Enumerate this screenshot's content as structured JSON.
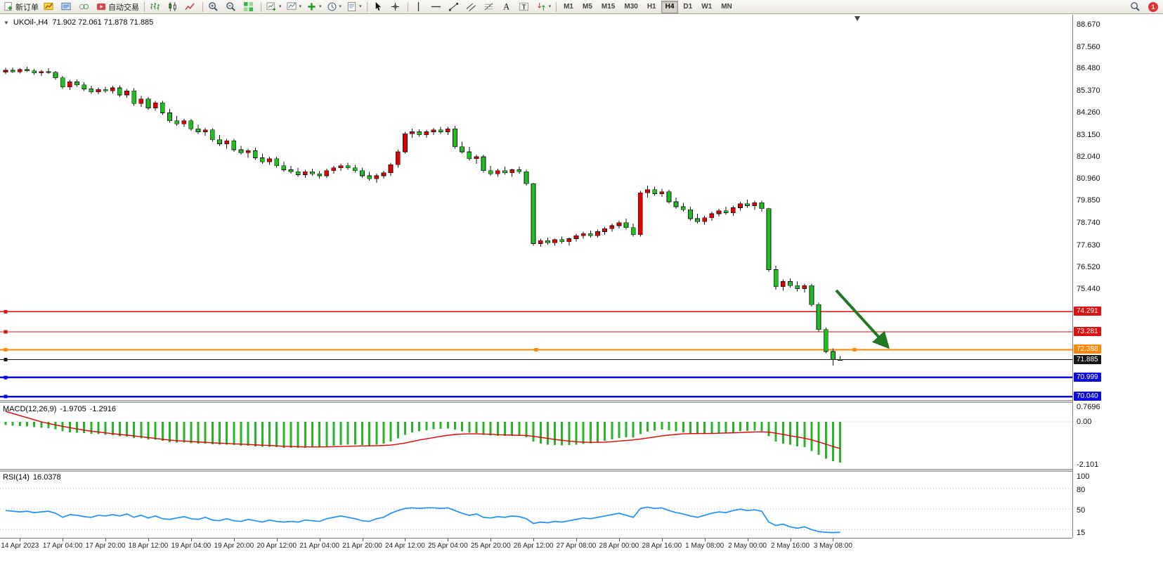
{
  "toolbar": {
    "notification_count": "1",
    "items": [
      {
        "name": "new-order-icon",
        "label": "新订单"
      },
      {
        "name": "charts-icon"
      },
      {
        "name": "market-watch-icon"
      },
      {
        "name": "data-window-icon"
      },
      {
        "name": "auto-trading-icon",
        "label": "自动交易"
      },
      {
        "sep": true
      },
      {
        "name": "bar-chart-icon"
      },
      {
        "name": "candlestick-chart-icon"
      },
      {
        "name": "line-chart-icon"
      },
      {
        "sep": true
      },
      {
        "name": "zoom-in-icon"
      },
      {
        "name": "zoom-out-icon"
      },
      {
        "name": "tile-windows-icon"
      },
      {
        "sep": true
      },
      {
        "name": "new-chart-icon",
        "dropdown": true
      },
      {
        "name": "profiles-icon",
        "dropdown": true
      },
      {
        "name": "indicators-icon",
        "dropdown": true
      },
      {
        "name": "periods-icon",
        "dropdown": true
      },
      {
        "name": "templates-icon",
        "dropdown": true
      },
      {
        "sep": true
      },
      {
        "name": "cursor-icon"
      },
      {
        "name": "crosshair-icon"
      },
      {
        "sep": true
      },
      {
        "name": "vertical-line-icon"
      },
      {
        "name": "horizontal-line-icon"
      },
      {
        "name": "trendline-icon"
      },
      {
        "name": "channel-icon"
      },
      {
        "name": "fibonacci-icon"
      },
      {
        "name": "text-icon"
      },
      {
        "name": "label-icon"
      },
      {
        "name": "arrows-icon",
        "dropdown": true
      },
      {
        "sep": true
      }
    ],
    "timeframes": [
      "M1",
      "M5",
      "M15",
      "M30",
      "H1",
      "H4",
      "D1",
      "W1",
      "MN"
    ],
    "active_timeframe": "H4"
  },
  "quote": {
    "symbol_period": "UKOil-,H4",
    "ohlc": "71.902 72.061 71.878 71.885"
  },
  "indicators": {
    "macd": {
      "name": "MACD(12,26,9)",
      "value_main": "-1.9705",
      "value_signal": "-1.2916",
      "scale_top": "0.7696",
      "scale_zero": "0.00",
      "scale_bottom": "-2.101"
    },
    "rsi": {
      "name": "RSI(14)",
      "value": "16.0378",
      "scale_labels": [
        "100",
        "80",
        "50",
        "15"
      ],
      "levels": [
        80,
        50,
        20
      ]
    }
  },
  "price_scale": {
    "labels": [
      "88.670",
      "87.560",
      "86.480",
      "85.370",
      "84.260",
      "83.150",
      "82.040",
      "80.960",
      "79.850",
      "78.740",
      "77.630",
      "76.520",
      "75.440"
    ]
  },
  "time_axis": {
    "labels": [
      "14 Apr 2023",
      "17 Apr 04:00",
      "17 Apr 20:00",
      "18 Apr 12:00",
      "19 Apr 04:00",
      "19 Apr 20:00",
      "20 Apr 12:00",
      "21 Apr 04:00",
      "21 Apr 20:00",
      "24 Apr 12:00",
      "25 Apr 04:00",
      "25 Apr 20:00",
      "26 Apr 12:00",
      "27 Apr 08:00",
      "28 Apr 00:00",
      "28 Apr 16:00",
      "1 May 08:00",
      "2 May 00:00",
      "2 May 16:00",
      "3 May 08:00"
    ]
  },
  "chart_data": {
    "type": "candlestick",
    "symbol": "UKOil-",
    "timeframe": "H4",
    "current_bar": {
      "open": 71.902,
      "high": 72.061,
      "low": 71.878,
      "close": 71.885
    },
    "up_color": "#e00000",
    "down_color": "#1fbf1f",
    "candles": [
      [
        86.28,
        86.5,
        86.18,
        86.38
      ],
      [
        86.38,
        86.52,
        86.25,
        86.3
      ],
      [
        86.3,
        86.48,
        86.22,
        86.42
      ],
      [
        86.42,
        86.55,
        86.3,
        86.35
      ],
      [
        86.35,
        86.45,
        86.15,
        86.25
      ],
      [
        86.25,
        86.4,
        86.1,
        86.32
      ],
      [
        86.32,
        86.48,
        86.2,
        86.28
      ],
      [
        86.28,
        86.35,
        85.9,
        86.0
      ],
      [
        86.0,
        86.1,
        85.45,
        85.55
      ],
      [
        85.55,
        85.9,
        85.4,
        85.8
      ],
      [
        85.8,
        85.92,
        85.55,
        85.65
      ],
      [
        85.65,
        85.78,
        85.35,
        85.45
      ],
      [
        85.45,
        85.6,
        85.2,
        85.3
      ],
      [
        85.3,
        85.52,
        85.18,
        85.42
      ],
      [
        85.42,
        85.55,
        85.25,
        85.35
      ],
      [
        85.35,
        85.6,
        85.22,
        85.5
      ],
      [
        85.5,
        85.62,
        85.05,
        85.15
      ],
      [
        85.15,
        85.45,
        85.0,
        85.35
      ],
      [
        85.35,
        85.48,
        84.6,
        84.72
      ],
      [
        84.72,
        85.1,
        84.55,
        84.95
      ],
      [
        84.95,
        85.05,
        84.4,
        84.5
      ],
      [
        84.5,
        84.85,
        84.35,
        84.75
      ],
      [
        84.75,
        84.85,
        84.15,
        84.25
      ],
      [
        84.25,
        84.45,
        83.75,
        83.85
      ],
      [
        83.85,
        84.1,
        83.6,
        83.7
      ],
      [
        83.7,
        83.95,
        83.55,
        83.85
      ],
      [
        83.85,
        83.95,
        83.35,
        83.45
      ],
      [
        83.45,
        83.65,
        83.2,
        83.3
      ],
      [
        83.3,
        83.5,
        83.1,
        83.4
      ],
      [
        83.4,
        83.48,
        82.8,
        82.9
      ],
      [
        82.9,
        83.15,
        82.6,
        82.7
      ],
      [
        82.7,
        82.95,
        82.45,
        82.85
      ],
      [
        82.85,
        82.95,
        82.3,
        82.4
      ],
      [
        82.4,
        82.6,
        82.15,
        82.25
      ],
      [
        82.25,
        82.45,
        82.0,
        82.35
      ],
      [
        82.35,
        82.5,
        81.9,
        82.0
      ],
      [
        82.0,
        82.2,
        81.7,
        81.8
      ],
      [
        81.8,
        82.05,
        81.65,
        81.95
      ],
      [
        81.95,
        82.05,
        81.5,
        81.6
      ],
      [
        81.6,
        81.8,
        81.3,
        81.4
      ],
      [
        81.4,
        81.6,
        81.2,
        81.3
      ],
      [
        81.3,
        81.5,
        81.05,
        81.15
      ],
      [
        81.15,
        81.4,
        81.0,
        81.3
      ],
      [
        81.3,
        81.45,
        81.1,
        81.2
      ],
      [
        81.2,
        81.35,
        80.95,
        81.1
      ],
      [
        81.1,
        81.45,
        81.0,
        81.35
      ],
      [
        81.35,
        81.6,
        81.2,
        81.5
      ],
      [
        81.5,
        81.7,
        81.35,
        81.6
      ],
      [
        81.6,
        81.75,
        81.4,
        81.5
      ],
      [
        81.5,
        81.65,
        81.25,
        81.35
      ],
      [
        81.35,
        81.5,
        81.0,
        81.1
      ],
      [
        81.1,
        81.3,
        80.85,
        80.95
      ],
      [
        80.95,
        81.2,
        80.75,
        81.1
      ],
      [
        81.1,
        81.35,
        80.95,
        81.25
      ],
      [
        81.25,
        81.75,
        81.1,
        81.65
      ],
      [
        81.65,
        82.4,
        81.5,
        82.3
      ],
      [
        82.3,
        83.3,
        82.2,
        83.2
      ],
      [
        83.2,
        83.45,
        83.0,
        83.3
      ],
      [
        83.3,
        83.42,
        83.05,
        83.15
      ],
      [
        83.15,
        83.4,
        83.0,
        83.3
      ],
      [
        83.3,
        83.5,
        83.15,
        83.4
      ],
      [
        83.4,
        83.55,
        83.2,
        83.3
      ],
      [
        83.3,
        83.55,
        83.15,
        83.45
      ],
      [
        83.45,
        83.6,
        82.45,
        82.55
      ],
      [
        82.55,
        82.8,
        82.2,
        82.3
      ],
      [
        82.3,
        82.55,
        81.85,
        81.95
      ],
      [
        81.95,
        82.15,
        81.7,
        82.05
      ],
      [
        82.05,
        82.15,
        81.25,
        81.35
      ],
      [
        81.35,
        81.6,
        81.1,
        81.2
      ],
      [
        81.2,
        81.45,
        81.05,
        81.35
      ],
      [
        81.35,
        81.55,
        81.15,
        81.25
      ],
      [
        81.25,
        81.45,
        81.05,
        81.4
      ],
      [
        81.4,
        81.55,
        81.2,
        81.3
      ],
      [
        81.3,
        81.4,
        80.6,
        80.7
      ],
      [
        80.7,
        80.75,
        77.6,
        77.7
      ],
      [
        77.7,
        77.95,
        77.55,
        77.85
      ],
      [
        77.85,
        78.0,
        77.65,
        77.75
      ],
      [
        77.75,
        77.95,
        77.6,
        77.9
      ],
      [
        77.9,
        78.05,
        77.7,
        77.8
      ],
      [
        77.8,
        78.0,
        77.6,
        77.95
      ],
      [
        77.95,
        78.2,
        77.8,
        78.1
      ],
      [
        78.1,
        78.3,
        77.95,
        78.2
      ],
      [
        78.2,
        78.35,
        78.0,
        78.1
      ],
      [
        78.1,
        78.4,
        78.0,
        78.3
      ],
      [
        78.3,
        78.55,
        78.15,
        78.45
      ],
      [
        78.45,
        78.7,
        78.3,
        78.6
      ],
      [
        78.6,
        78.85,
        78.45,
        78.75
      ],
      [
        78.75,
        78.95,
        78.4,
        78.5
      ],
      [
        78.5,
        78.7,
        78.05,
        78.15
      ],
      [
        78.15,
        80.35,
        78.05,
        80.25
      ],
      [
        80.25,
        80.6,
        80.0,
        80.4
      ],
      [
        80.4,
        80.55,
        80.1,
        80.2
      ],
      [
        80.2,
        80.45,
        80.05,
        80.3
      ],
      [
        80.3,
        80.4,
        79.7,
        79.8
      ],
      [
        79.8,
        80.0,
        79.45,
        79.55
      ],
      [
        79.55,
        79.75,
        79.3,
        79.4
      ],
      [
        79.4,
        79.55,
        78.85,
        78.95
      ],
      [
        78.95,
        79.2,
        78.7,
        78.8
      ],
      [
        78.8,
        79.1,
        78.65,
        79.0
      ],
      [
        79.0,
        79.3,
        78.85,
        79.2
      ],
      [
        79.2,
        79.45,
        79.05,
        79.35
      ],
      [
        79.35,
        79.55,
        79.15,
        79.25
      ],
      [
        79.25,
        79.6,
        79.1,
        79.5
      ],
      [
        79.5,
        79.8,
        79.35,
        79.7
      ],
      [
        79.7,
        79.9,
        79.5,
        79.6
      ],
      [
        79.6,
        79.85,
        79.4,
        79.75
      ],
      [
        79.75,
        79.85,
        79.3,
        79.45
      ],
      [
        79.45,
        79.5,
        76.3,
        76.4
      ],
      [
        76.4,
        76.6,
        75.4,
        75.55
      ],
      [
        75.55,
        75.9,
        75.35,
        75.8
      ],
      [
        75.8,
        75.95,
        75.5,
        75.6
      ],
      [
        75.6,
        75.8,
        75.3,
        75.45
      ],
      [
        75.45,
        75.7,
        75.25,
        75.6
      ],
      [
        75.6,
        75.7,
        74.55,
        74.65
      ],
      [
        74.65,
        74.75,
        73.3,
        73.4
      ],
      [
        73.4,
        73.5,
        72.2,
        72.3
      ],
      [
        72.3,
        72.45,
        71.6,
        71.9
      ],
      [
        71.902,
        72.061,
        71.878,
        71.885
      ]
    ],
    "hlines": [
      {
        "price": 74.291,
        "color": "#dd1111",
        "width": 1.4,
        "label": "74.291",
        "selected": false
      },
      {
        "price": 73.281,
        "color": "#dd1111",
        "width": 1.4,
        "label": "73.281",
        "selected": false
      },
      {
        "price": 72.388,
        "color": "#ff8800",
        "width": 1.8,
        "label": "72.388",
        "selected": true
      },
      {
        "price": 71.885,
        "color": "#151515",
        "width": 1.1,
        "label": "71.885",
        "selected": false
      },
      {
        "price": 70.999,
        "color": "#0a0ae0",
        "width": 2.4,
        "label": "70.999",
        "selected": false
      },
      {
        "price": 70.04,
        "color": "#0a0ae0",
        "width": 2.4,
        "label": "70.040",
        "selected": false
      }
    ],
    "macd_histogram": [
      -0.15,
      -0.18,
      -0.2,
      -0.22,
      -0.25,
      -0.28,
      -0.3,
      -0.35,
      -0.45,
      -0.5,
      -0.52,
      -0.55,
      -0.58,
      -0.6,
      -0.62,
      -0.65,
      -0.7,
      -0.72,
      -0.78,
      -0.8,
      -0.85,
      -0.87,
      -0.92,
      -0.98,
      -1.0,
      -1.0,
      -1.03,
      -1.05,
      -1.05,
      -1.08,
      -1.1,
      -1.1,
      -1.12,
      -1.15,
      -1.15,
      -1.18,
      -1.2,
      -1.2,
      -1.22,
      -1.25,
      -1.25,
      -1.26,
      -1.25,
      -1.24,
      -1.23,
      -1.2,
      -1.16,
      -1.12,
      -1.1,
      -1.1,
      -1.12,
      -1.14,
      -1.1,
      -1.05,
      -0.95,
      -0.8,
      -0.62,
      -0.5,
      -0.45,
      -0.4,
      -0.36,
      -0.34,
      -0.32,
      -0.38,
      -0.45,
      -0.52,
      -0.55,
      -0.62,
      -0.66,
      -0.67,
      -0.68,
      -0.67,
      -0.68,
      -0.74,
      -0.95,
      -1.05,
      -1.1,
      -1.12,
      -1.13,
      -1.12,
      -1.1,
      -1.06,
      -1.03,
      -0.98,
      -0.92,
      -0.85,
      -0.78,
      -0.75,
      -0.76,
      -0.6,
      -0.48,
      -0.42,
      -0.38,
      -0.4,
      -0.45,
      -0.5,
      -0.56,
      -0.6,
      -0.6,
      -0.58,
      -0.55,
      -0.53,
      -0.5,
      -0.46,
      -0.44,
      -0.42,
      -0.44,
      -0.7,
      -0.95,
      -1.05,
      -1.1,
      -1.18,
      -1.22,
      -1.4,
      -1.6,
      -1.78,
      -1.9,
      -1.9705
    ],
    "macd_signal": [
      0.5,
      0.4,
      0.3,
      0.2,
      0.1,
      0.0,
      -0.08,
      -0.15,
      -0.22,
      -0.28,
      -0.34,
      -0.4,
      -0.45,
      -0.49,
      -0.53,
      -0.57,
      -0.61,
      -0.64,
      -0.68,
      -0.72,
      -0.76,
      -0.8,
      -0.84,
      -0.88,
      -0.91,
      -0.93,
      -0.95,
      -0.97,
      -0.99,
      -1.01,
      -1.03,
      -1.04,
      -1.06,
      -1.08,
      -1.09,
      -1.11,
      -1.13,
      -1.14,
      -1.16,
      -1.18,
      -1.19,
      -1.2,
      -1.21,
      -1.21,
      -1.21,
      -1.21,
      -1.2,
      -1.19,
      -1.18,
      -1.17,
      -1.16,
      -1.16,
      -1.15,
      -1.14,
      -1.12,
      -1.08,
      -1.02,
      -0.95,
      -0.88,
      -0.82,
      -0.76,
      -0.7,
      -0.65,
      -0.61,
      -0.59,
      -0.58,
      -0.58,
      -0.59,
      -0.6,
      -0.62,
      -0.63,
      -0.64,
      -0.65,
      -0.66,
      -0.7,
      -0.75,
      -0.8,
      -0.85,
      -0.89,
      -0.93,
      -0.96,
      -0.98,
      -0.99,
      -0.99,
      -0.98,
      -0.96,
      -0.93,
      -0.9,
      -0.87,
      -0.83,
      -0.78,
      -0.73,
      -0.68,
      -0.64,
      -0.61,
      -0.58,
      -0.57,
      -0.56,
      -0.56,
      -0.56,
      -0.55,
      -0.54,
      -0.53,
      -0.52,
      -0.5,
      -0.49,
      -0.48,
      -0.5,
      -0.55,
      -0.61,
      -0.67,
      -0.73,
      -0.79,
      -0.87,
      -0.97,
      -1.08,
      -1.19,
      -1.2916
    ],
    "rsi": [
      48,
      47,
      46,
      47,
      45,
      46,
      47,
      44,
      38,
      42,
      41,
      39,
      38,
      41,
      40,
      42,
      40,
      43,
      38,
      41,
      37,
      40,
      36,
      35,
      37,
      39,
      36,
      35,
      38,
      34,
      33,
      36,
      33,
      32,
      35,
      33,
      31,
      34,
      32,
      31,
      32,
      31,
      34,
      33,
      32,
      36,
      38,
      40,
      38,
      36,
      33,
      32,
      36,
      38,
      44,
      48,
      51,
      52,
      51,
      52,
      52,
      51,
      52,
      48,
      44,
      41,
      43,
      38,
      37,
      39,
      38,
      40,
      39,
      36,
      29,
      31,
      30,
      32,
      31,
      33,
      35,
      37,
      36,
      38,
      40,
      42,
      44,
      41,
      38,
      51,
      53,
      51,
      52,
      48,
      45,
      43,
      40,
      38,
      41,
      44,
      46,
      45,
      48,
      50,
      48,
      49,
      47,
      31,
      26,
      28,
      24,
      22,
      24,
      20,
      17,
      16,
      15.5,
      16.0378
    ],
    "trend_arrow": {
      "from_bar": 116.45,
      "from_price": 75.36,
      "to_bar": 123.55,
      "to_price": 72.58,
      "color": "#217a21"
    }
  }
}
